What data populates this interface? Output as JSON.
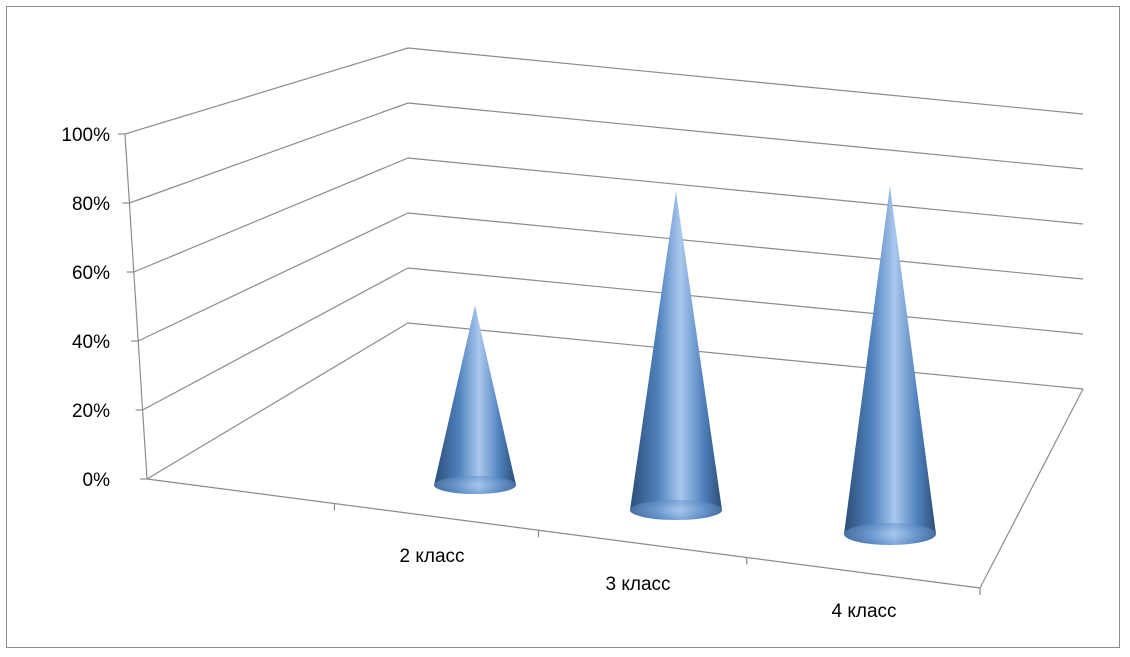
{
  "chart_data": {
    "type": "bar",
    "bar_shape": "cone",
    "projection": "3d",
    "categories": [
      "2 класс",
      "3 класс",
      "4 класс"
    ],
    "series": [
      {
        "values": [
          0.63,
          0.91,
          0.92
        ]
      }
    ],
    "ylim": [
      0,
      1
    ],
    "y_tick_labels": [
      "0%",
      "20%",
      "40%",
      "60%",
      "80%",
      "100%"
    ],
    "grid": true,
    "legend": "none",
    "colors": {
      "bar": "#4f81bd",
      "bar_light": "#a9c8ee",
      "bar_dark": "#2c4d75",
      "gridline": "#8c8c8c",
      "axis": "#8c8c8c",
      "text": "#000000",
      "frame": "#8c8c8c"
    }
  }
}
